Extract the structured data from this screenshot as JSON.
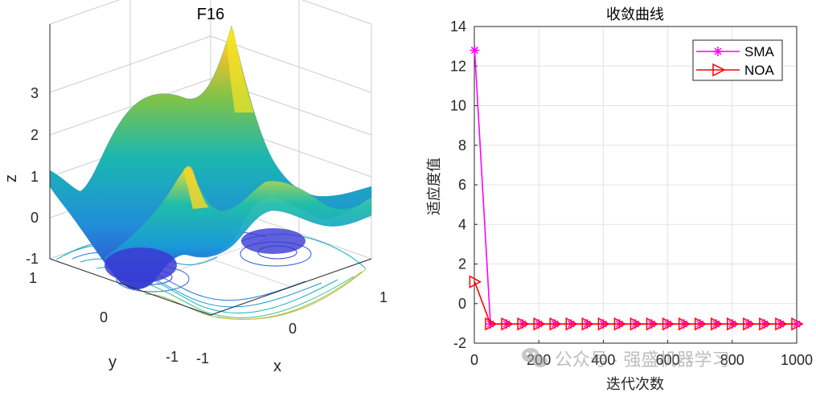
{
  "left_plot": {
    "title": "F16",
    "xlabel": "x",
    "ylabel": "y",
    "zlabel": "z",
    "x_ticks": [
      "-1",
      "0",
      "1"
    ],
    "y_ticks": [
      "1",
      "0",
      "-1"
    ],
    "z_ticks": [
      "3",
      "2",
      "1",
      "0",
      "-1"
    ]
  },
  "chart_data": [
    {
      "type": "surface",
      "title": "F16",
      "xlabel": "x",
      "ylabel": "y",
      "zlabel": "z",
      "xlim": [
        -1,
        1
      ],
      "ylim": [
        -1,
        1
      ],
      "zlim": [
        -1,
        3
      ],
      "colormap": "parula",
      "contour_projection": true
    },
    {
      "type": "line",
      "title": "收敛曲线",
      "xlabel": "迭代次数",
      "ylabel": "适应度值",
      "xlim": [
        0,
        1000
      ],
      "ylim": [
        -2,
        14
      ],
      "xticks": [
        "0",
        "200",
        "400",
        "600",
        "800",
        "1000"
      ],
      "yticks": [
        "-2",
        "0",
        "2",
        "4",
        "6",
        "8",
        "10",
        "12",
        "14"
      ],
      "grid": true,
      "legend": "top-right",
      "series": [
        {
          "name": "SMA",
          "color": "#ff00ff",
          "marker": "asterisk",
          "x": [
            1,
            50,
            100,
            150,
            200,
            250,
            300,
            350,
            400,
            450,
            500,
            550,
            600,
            650,
            700,
            750,
            800,
            850,
            900,
            950,
            1000
          ],
          "y": [
            12.8,
            -1.03,
            -1.03,
            -1.03,
            -1.03,
            -1.03,
            -1.03,
            -1.03,
            -1.03,
            -1.03,
            -1.03,
            -1.03,
            -1.03,
            -1.03,
            -1.03,
            -1.03,
            -1.03,
            -1.03,
            -1.03,
            -1.03,
            -1.03
          ]
        },
        {
          "name": "NOA",
          "color": "#ff0000",
          "marker": "triangle-right",
          "x": [
            1,
            50,
            100,
            150,
            200,
            250,
            300,
            350,
            400,
            450,
            500,
            550,
            600,
            650,
            700,
            750,
            800,
            850,
            900,
            950,
            1000
          ],
          "y": [
            1.1,
            -1.03,
            -1.03,
            -1.03,
            -1.03,
            -1.03,
            -1.03,
            -1.03,
            -1.03,
            -1.03,
            -1.03,
            -1.03,
            -1.03,
            -1.03,
            -1.03,
            -1.03,
            -1.03,
            -1.03,
            -1.03,
            -1.03,
            -1.03
          ]
        }
      ]
    }
  ],
  "watermark": "公众号 · 强盛机器学习"
}
